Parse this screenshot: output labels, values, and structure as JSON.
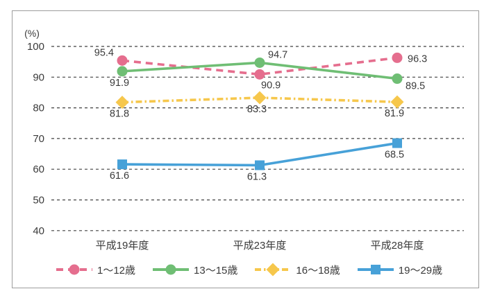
{
  "chart_data": {
    "type": "line",
    "title": "",
    "unit_label": "(%)",
    "categories": [
      "平成19年度",
      "平成23年度",
      "平成28年度"
    ],
    "ylim": [
      40,
      100
    ],
    "yticks": [
      100,
      90,
      80,
      70,
      60,
      50,
      40
    ],
    "grid": "dashed-horizontal",
    "legend_position": "bottom",
    "colors": {
      "grid": "#404040",
      "text": "#3a3a3a",
      "frame_border": "#9c9c9c"
    },
    "series": [
      {
        "name": "1〜12歳",
        "values": [
          95.4,
          90.9,
          96.3
        ],
        "color": "#e56e8e",
        "line_style": "dashed",
        "marker": "circle",
        "label_pos": [
          "above-left",
          "below-right",
          "right"
        ]
      },
      {
        "name": "13〜15歳",
        "values": [
          91.9,
          94.7,
          89.5
        ],
        "color": "#6fbe74",
        "line_style": "solid",
        "marker": "circle",
        "label_pos": [
          "below",
          "above-right",
          "right-below"
        ]
      },
      {
        "name": "16〜18歳",
        "values": [
          81.8,
          83.3,
          81.9
        ],
        "color": "#f6c74c",
        "line_style": "dash-dot",
        "marker": "diamond",
        "label_pos": [
          "below",
          "below",
          "below"
        ]
      },
      {
        "name": "19〜29歳",
        "values": [
          61.6,
          61.3,
          68.5
        ],
        "color": "#47a1d8",
        "line_style": "solid",
        "marker": "square",
        "label_pos": [
          "below",
          "below",
          "below"
        ]
      }
    ]
  }
}
